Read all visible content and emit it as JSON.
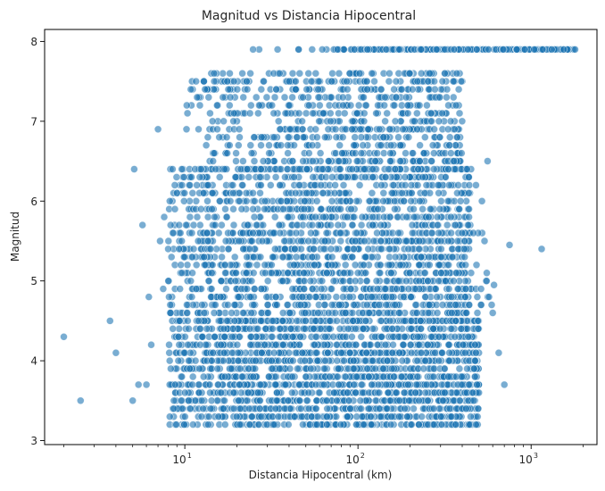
{
  "chart_data": {
    "type": "scatter",
    "title": "Magnitud vs Distancia Hipocentral",
    "xlabel": "Distancia Hipocentral (km)",
    "ylabel": "Magnitud",
    "xscale": "log",
    "xlim": [
      1.55,
      2400
    ],
    "ylim": [
      2.95,
      8.15
    ],
    "x_ticks": [
      {
        "value": 10,
        "base": "10",
        "exp": "1"
      },
      {
        "value": 100,
        "base": "10",
        "exp": "2"
      },
      {
        "value": 1000,
        "base": "10",
        "exp": "3"
      }
    ],
    "y_ticks": [
      3,
      4,
      5,
      6,
      7,
      8
    ],
    "grid": false,
    "legend": "none",
    "marker_color": "#1f77b4",
    "marker_opacity": 0.6,
    "points": [
      [
        2.0,
        4.3
      ],
      [
        2.5,
        3.5
      ],
      [
        3.7,
        4.5
      ],
      [
        4.0,
        4.1
      ],
      [
        5.0,
        3.5
      ],
      [
        5.1,
        6.4
      ],
      [
        5.4,
        3.7
      ],
      [
        5.7,
        5.7
      ],
      [
        6.0,
        3.7
      ],
      [
        6.2,
        4.8
      ],
      [
        6.4,
        4.2
      ],
      [
        7.0,
        6.9
      ],
      [
        7.2,
        5.5
      ],
      [
        7.5,
        4.9
      ],
      [
        7.6,
        5.8
      ],
      [
        1150,
        5.4
      ],
      [
        700,
        3.7
      ],
      [
        650,
        4.1
      ],
      [
        480,
        6.2
      ],
      [
        520,
        6.0
      ],
      [
        600,
        4.6
      ],
      [
        750,
        5.45
      ],
      [
        610,
        4.95
      ],
      [
        560,
        6.5
      ]
    ],
    "clusters": [
      {
        "xmin": 8,
        "xmax": 500,
        "ymin": 3.2,
        "ymax": 4.5,
        "count": 1900
      },
      {
        "xmin": 8,
        "xmax": 450,
        "ymin": 4.5,
        "ymax": 6.4,
        "count": 1450
      },
      {
        "xmin": 10,
        "xmax": 400,
        "ymin": 6.4,
        "ymax": 7.6,
        "count": 760
      },
      {
        "xmin": 9,
        "xmax": 600,
        "ymin": 4.6,
        "ymax": 5.6,
        "count": 300
      },
      {
        "xmin": 60,
        "xmax": 1800,
        "ymin": 7.9,
        "ymax": 7.9,
        "count": 230
      },
      {
        "xmin": 22,
        "xmax": 60,
        "ymin": 7.9,
        "ymax": 7.9,
        "count": 6
      }
    ]
  }
}
